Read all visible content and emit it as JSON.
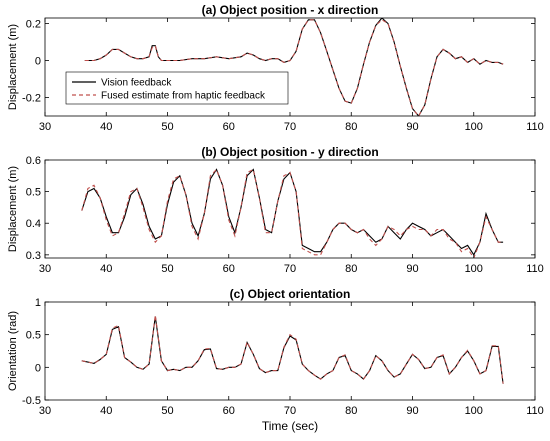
{
  "chart_data": [
    {
      "type": "line",
      "title": "(a) Object position - x direction",
      "ylabel": "Displacement (m)",
      "xlabel": "",
      "xlim": [
        30,
        110
      ],
      "ylim": [
        -0.3,
        0.23
      ],
      "xticks": [
        30,
        40,
        50,
        60,
        70,
        80,
        90,
        100,
        110
      ],
      "yticks": [
        -0.2,
        0,
        0.2
      ],
      "ytick_labels": [
        "-0.2",
        "0",
        "0.2"
      ],
      "legend": {
        "placement": "left",
        "entries": [
          "Vision feedback",
          "Fused estimate from haptic feedback"
        ]
      },
      "series": [
        {
          "name": "Vision feedback",
          "color": "#000000",
          "style": "solid",
          "x": [
            36.5,
            37,
            38,
            39,
            40,
            41,
            42,
            43,
            44,
            45,
            46,
            47,
            47.5,
            48,
            48.5,
            49,
            50,
            52,
            54,
            56,
            58,
            60,
            62,
            63,
            64,
            65,
            66,
            67,
            68,
            69,
            70,
            71,
            72,
            73,
            74,
            75,
            76,
            77,
            78,
            79,
            80,
            81,
            82,
            83,
            84,
            85,
            86,
            87,
            88,
            89,
            90,
            91,
            92,
            93,
            94,
            95,
            96,
            97,
            98,
            99,
            100,
            101,
            102,
            103,
            104,
            104.8
          ],
          "y": [
            0.0,
            0.0,
            0.0,
            0.01,
            0.03,
            0.06,
            0.06,
            0.04,
            0.02,
            0.01,
            0.01,
            0.02,
            0.08,
            0.08,
            0.02,
            0.0,
            0.0,
            0.0,
            0.01,
            0.01,
            0.02,
            0.01,
            0.02,
            0.04,
            0.03,
            0.01,
            0.0,
            0.01,
            0.01,
            -0.01,
            0.0,
            0.05,
            0.17,
            0.22,
            0.22,
            0.15,
            0.05,
            -0.05,
            -0.15,
            -0.22,
            -0.23,
            -0.15,
            -0.02,
            0.1,
            0.19,
            0.23,
            0.2,
            0.1,
            -0.03,
            -0.15,
            -0.26,
            -0.3,
            -0.24,
            -0.1,
            0.02,
            0.06,
            0.04,
            0.01,
            0.02,
            -0.01,
            0.01,
            -0.02,
            0.0,
            -0.01,
            -0.01,
            -0.02
          ]
        },
        {
          "name": "Fused estimate from haptic feedback",
          "color": "#c0504d",
          "style": "dashed",
          "x": [
            36.5,
            37,
            38,
            39,
            40,
            41,
            42,
            43,
            44,
            45,
            46,
            47,
            47.5,
            48,
            48.5,
            49,
            50,
            52,
            54,
            56,
            58,
            60,
            62,
            63,
            64,
            65,
            66,
            67,
            68,
            69,
            70,
            71,
            72,
            73,
            74,
            75,
            76,
            77,
            78,
            79,
            80,
            81,
            82,
            83,
            84,
            85,
            86,
            87,
            88,
            89,
            90,
            91,
            92,
            93,
            94,
            95,
            96,
            97,
            98,
            99,
            100,
            101,
            102,
            103,
            104,
            104.8
          ],
          "y": [
            0.0,
            0.0,
            0.0,
            0.01,
            0.03,
            0.06,
            0.06,
            0.04,
            0.02,
            0.01,
            0.01,
            0.02,
            0.07,
            0.08,
            0.02,
            0.0,
            0.0,
            0.0,
            0.01,
            0.01,
            0.02,
            0.01,
            0.02,
            0.04,
            0.03,
            0.01,
            0.0,
            0.01,
            0.01,
            -0.01,
            0.0,
            0.05,
            0.17,
            0.22,
            0.22,
            0.15,
            0.05,
            -0.05,
            -0.15,
            -0.22,
            -0.23,
            -0.15,
            -0.02,
            0.1,
            0.19,
            0.22,
            0.2,
            0.1,
            -0.03,
            -0.15,
            -0.26,
            -0.3,
            -0.24,
            -0.1,
            0.02,
            0.06,
            0.04,
            0.01,
            0.02,
            -0.01,
            0.01,
            -0.02,
            0.0,
            -0.01,
            -0.01,
            -0.02
          ]
        }
      ]
    },
    {
      "type": "line",
      "title": "(b) Object position - y direction",
      "ylabel": "Displacement (m)",
      "xlabel": "",
      "xlim": [
        30,
        110
      ],
      "ylim": [
        0.29,
        0.6
      ],
      "xticks": [
        30,
        40,
        50,
        60,
        70,
        80,
        90,
        100,
        110
      ],
      "yticks": [
        0.3,
        0.4,
        0.5,
        0.6
      ],
      "ytick_labels": [
        "0.3",
        "0.4",
        "0.5",
        "0.6"
      ],
      "series": [
        {
          "name": "Vision feedback",
          "color": "#000000",
          "style": "solid",
          "x": [
            36,
            37,
            38,
            39,
            40,
            41,
            42,
            43,
            44,
            45,
            46,
            47,
            48,
            49,
            50,
            51,
            52,
            53,
            54,
            55,
            56,
            57,
            58,
            59,
            60,
            61,
            62,
            63,
            64,
            65,
            66,
            67,
            68,
            69,
            70,
            71,
            72,
            73,
            74,
            75,
            76,
            77,
            78,
            79,
            80,
            81,
            82,
            83,
            84,
            85,
            86,
            87,
            88,
            89,
            90,
            91,
            92,
            93,
            94,
            95,
            96,
            97,
            98,
            99,
            100,
            101,
            102,
            103,
            104,
            104.8
          ],
          "y": [
            0.44,
            0.5,
            0.51,
            0.48,
            0.42,
            0.37,
            0.37,
            0.42,
            0.49,
            0.51,
            0.46,
            0.39,
            0.35,
            0.36,
            0.46,
            0.53,
            0.55,
            0.49,
            0.4,
            0.36,
            0.43,
            0.54,
            0.57,
            0.52,
            0.42,
            0.37,
            0.45,
            0.55,
            0.57,
            0.48,
            0.38,
            0.37,
            0.47,
            0.54,
            0.56,
            0.5,
            0.33,
            0.32,
            0.31,
            0.31,
            0.34,
            0.38,
            0.4,
            0.4,
            0.38,
            0.37,
            0.38,
            0.36,
            0.34,
            0.35,
            0.39,
            0.37,
            0.35,
            0.38,
            0.4,
            0.39,
            0.38,
            0.36,
            0.37,
            0.38,
            0.36,
            0.34,
            0.32,
            0.33,
            0.3,
            0.34,
            0.43,
            0.38,
            0.34,
            0.34
          ]
        },
        {
          "name": "Fused estimate from haptic feedback",
          "color": "#c0504d",
          "style": "dashed",
          "x": [
            36,
            37,
            38,
            39,
            40,
            41,
            42,
            43,
            44,
            45,
            46,
            47,
            48,
            49,
            50,
            51,
            52,
            53,
            54,
            55,
            56,
            57,
            58,
            59,
            60,
            61,
            62,
            63,
            64,
            65,
            66,
            67,
            68,
            69,
            70,
            71,
            72,
            73,
            74,
            75,
            76,
            77,
            78,
            79,
            80,
            81,
            82,
            83,
            84,
            85,
            86,
            87,
            88,
            89,
            90,
            91,
            92,
            93,
            94,
            95,
            96,
            97,
            98,
            99,
            100,
            101,
            102,
            103,
            104,
            104.8
          ],
          "y": [
            0.44,
            0.51,
            0.52,
            0.48,
            0.41,
            0.36,
            0.37,
            0.43,
            0.5,
            0.51,
            0.45,
            0.38,
            0.34,
            0.36,
            0.47,
            0.54,
            0.55,
            0.49,
            0.39,
            0.35,
            0.43,
            0.55,
            0.57,
            0.52,
            0.41,
            0.36,
            0.45,
            0.56,
            0.57,
            0.48,
            0.37,
            0.37,
            0.47,
            0.55,
            0.56,
            0.5,
            0.32,
            0.31,
            0.3,
            0.3,
            0.34,
            0.38,
            0.4,
            0.4,
            0.38,
            0.37,
            0.38,
            0.35,
            0.33,
            0.35,
            0.39,
            0.38,
            0.36,
            0.38,
            0.39,
            0.38,
            0.38,
            0.36,
            0.38,
            0.38,
            0.35,
            0.34,
            0.31,
            0.32,
            0.29,
            0.34,
            0.42,
            0.38,
            0.34,
            0.34
          ]
        }
      ]
    },
    {
      "type": "line",
      "title": "(c) Object orientation",
      "ylabel": "Orientation (rad)",
      "xlabel": "Time (sec)",
      "xlim": [
        30,
        110
      ],
      "ylim": [
        -0.5,
        1.0
      ],
      "xticks": [
        30,
        40,
        50,
        60,
        70,
        80,
        90,
        100,
        110
      ],
      "yticks": [
        -0.5,
        0,
        0.5,
        1
      ],
      "ytick_labels": [
        "-0.5",
        "0",
        "0.5",
        "1"
      ],
      "series": [
        {
          "name": "Vision feedback",
          "color": "#000000",
          "style": "solid",
          "x": [
            36,
            37,
            38,
            39,
            40,
            41,
            42,
            43,
            44,
            45,
            46,
            47,
            48,
            49,
            50,
            51,
            52,
            53,
            54,
            55,
            56,
            57,
            58,
            59,
            60,
            61,
            62,
            63,
            64,
            65,
            66,
            67,
            68,
            69,
            70,
            71,
            72,
            73,
            74,
            75,
            76,
            77,
            78,
            79,
            80,
            81,
            82,
            83,
            84,
            85,
            86,
            87,
            88,
            89,
            90,
            91,
            92,
            93,
            94,
            95,
            96,
            97,
            98,
            99,
            100,
            101,
            102,
            103,
            104,
            104.8
          ],
          "y": [
            0.1,
            0.08,
            0.06,
            0.12,
            0.2,
            0.58,
            0.62,
            0.15,
            0.08,
            0.0,
            -0.03,
            0.05,
            0.78,
            0.1,
            -0.05,
            -0.03,
            -0.05,
            0.0,
            0.0,
            0.1,
            0.27,
            0.28,
            -0.02,
            -0.03,
            0.0,
            0.0,
            0.05,
            0.38,
            0.2,
            -0.02,
            -0.08,
            -0.05,
            -0.05,
            0.3,
            0.48,
            0.42,
            0.05,
            -0.05,
            -0.12,
            -0.18,
            -0.1,
            -0.05,
            0.15,
            0.18,
            -0.05,
            -0.1,
            -0.18,
            -0.05,
            0.18,
            0.1,
            -0.05,
            -0.15,
            -0.1,
            0.05,
            0.2,
            0.12,
            -0.02,
            0.0,
            0.15,
            0.18,
            -0.1,
            0.0,
            0.15,
            0.25,
            0.1,
            -0.1,
            -0.05,
            0.32,
            0.32,
            -0.25
          ]
        },
        {
          "name": "Fused estimate from haptic feedback",
          "color": "#c0504d",
          "style": "dashed",
          "x": [
            36,
            37,
            38,
            39,
            40,
            41,
            42,
            43,
            44,
            45,
            46,
            47,
            48,
            49,
            50,
            51,
            52,
            53,
            54,
            55,
            56,
            57,
            58,
            59,
            60,
            61,
            62,
            63,
            64,
            65,
            66,
            67,
            68,
            69,
            70,
            71,
            72,
            73,
            74,
            75,
            76,
            77,
            78,
            79,
            80,
            81,
            82,
            83,
            84,
            85,
            86,
            87,
            88,
            89,
            90,
            91,
            92,
            93,
            94,
            95,
            96,
            97,
            98,
            99,
            100,
            101,
            102,
            103,
            104,
            104.8
          ],
          "y": [
            0.1,
            0.08,
            0.06,
            0.12,
            0.2,
            0.6,
            0.64,
            0.15,
            0.08,
            0.0,
            -0.03,
            0.05,
            0.8,
            0.1,
            -0.05,
            -0.03,
            -0.05,
            0.0,
            0.0,
            0.1,
            0.28,
            0.29,
            -0.02,
            -0.03,
            0.0,
            0.0,
            0.05,
            0.39,
            0.2,
            -0.02,
            -0.08,
            -0.05,
            -0.05,
            0.31,
            0.5,
            0.43,
            0.05,
            -0.05,
            -0.12,
            -0.18,
            -0.1,
            -0.05,
            0.15,
            0.19,
            -0.05,
            -0.1,
            -0.18,
            -0.05,
            0.18,
            0.1,
            -0.05,
            -0.15,
            -0.1,
            0.05,
            0.2,
            0.12,
            -0.02,
            0.0,
            0.15,
            0.19,
            -0.1,
            0.0,
            0.15,
            0.26,
            0.1,
            -0.1,
            -0.05,
            0.33,
            0.33,
            -0.25
          ]
        }
      ]
    }
  ]
}
